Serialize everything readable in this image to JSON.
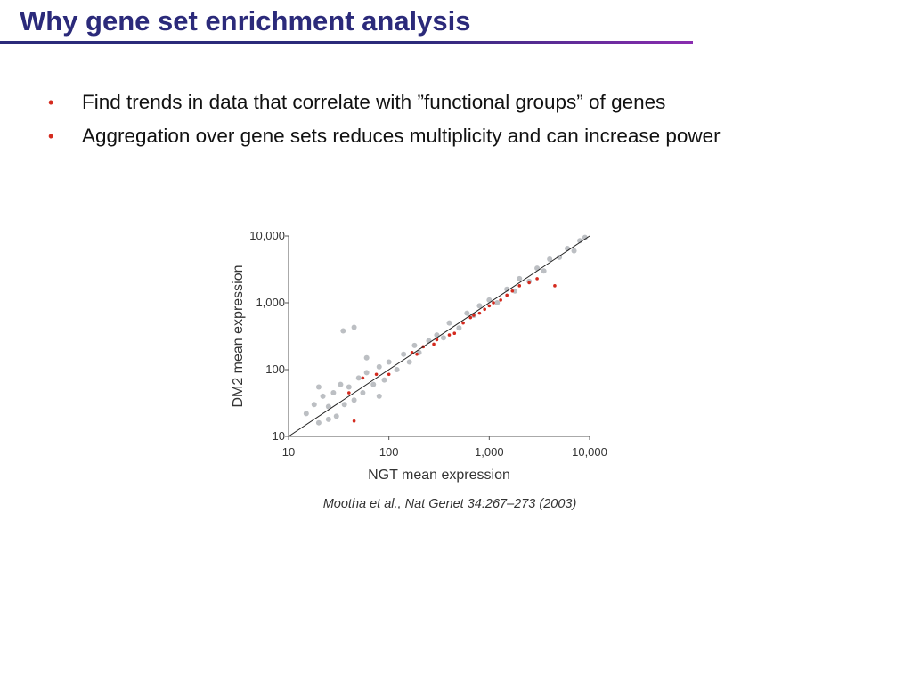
{
  "header": {
    "title": "Why gene set enrichment analysis"
  },
  "bullets": [
    "Find trends in data that correlate with ”functional groups” of genes",
    "Aggregation over gene sets reduces multiplicity and can increase power"
  ],
  "citation": "Mootha et al., Nat Genet 34:267–273 (2003)",
  "chart_data": {
    "type": "scatter",
    "xlabel": "NGT mean expression",
    "ylabel": "DM2 mean expression",
    "log_x": true,
    "log_y": true,
    "xlim": [
      10,
      10000
    ],
    "ylim": [
      10,
      10000
    ],
    "xticks": [
      10,
      100,
      {
        "value": 1000,
        "label": "1,000"
      },
      {
        "value": 10000,
        "label": "10,000"
      }
    ],
    "yticks": [
      10,
      100,
      {
        "value": 1000,
        "label": "1,000"
      },
      {
        "value": 10000,
        "label": "10,000"
      }
    ],
    "series": [
      {
        "color": "#bcbfc3",
        "x": [
          15,
          18,
          20,
          22,
          25,
          28,
          30,
          33,
          36,
          40,
          45,
          50,
          55,
          60,
          70,
          80,
          90,
          100,
          120,
          140,
          160,
          180,
          200,
          250,
          300,
          350,
          400,
          500,
          600,
          700,
          800,
          1000,
          1200,
          1500,
          1800,
          2000,
          2500,
          3000,
          3500,
          4000,
          5000,
          6000,
          7000,
          8000,
          9000,
          35,
          45,
          20,
          25,
          60,
          80
        ],
        "values": [
          22,
          30,
          16,
          40,
          28,
          45,
          20,
          60,
          30,
          55,
          35,
          75,
          45,
          90,
          60,
          110,
          70,
          130,
          100,
          170,
          130,
          230,
          180,
          270,
          330,
          300,
          500,
          420,
          700,
          650,
          900,
          1100,
          1000,
          1600,
          1500,
          2300,
          2100,
          3300,
          3000,
          4500,
          4800,
          6500,
          6000,
          8500,
          9500,
          380,
          430,
          55,
          18,
          150,
          40
        ]
      },
      {
        "color": "#d42a1e",
        "x": [
          40,
          45,
          55,
          75,
          100,
          170,
          190,
          220,
          280,
          300,
          400,
          450,
          550,
          650,
          700,
          800,
          900,
          1000,
          1100,
          1300,
          1500,
          1700,
          2000,
          2500,
          3000,
          4500
        ],
        "values": [
          45,
          17,
          75,
          85,
          85,
          180,
          170,
          220,
          240,
          280,
          330,
          350,
          500,
          600,
          650,
          700,
          800,
          900,
          1000,
          1100,
          1300,
          1500,
          1800,
          2000,
          2300,
          1800
        ]
      }
    ]
  }
}
